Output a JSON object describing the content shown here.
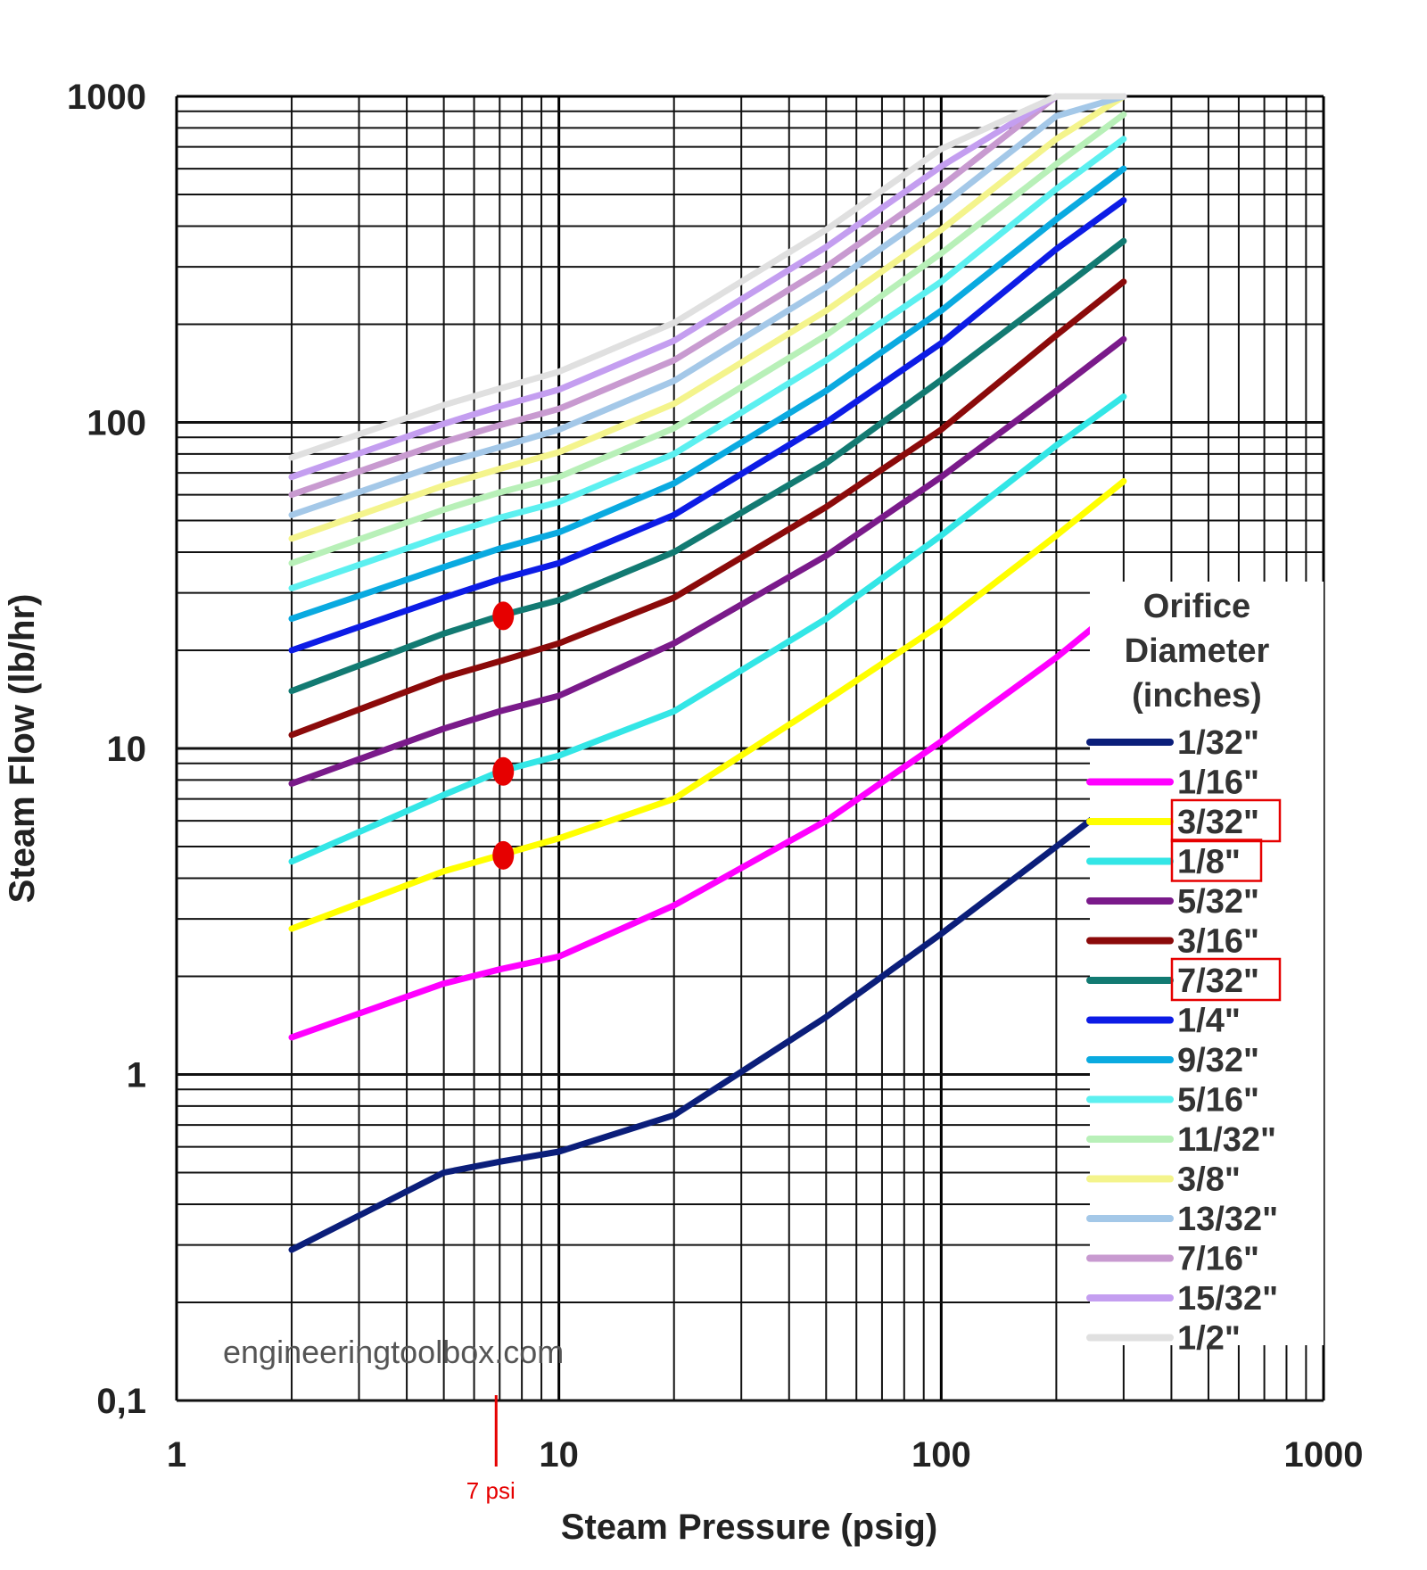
{
  "chart_data": {
    "type": "line",
    "title": "",
    "xlabel": "Steam Pressure (psig)",
    "ylabel": "Steam Flow (lb/hr)",
    "x_scale": "log",
    "y_scale": "log",
    "xlim": [
      1,
      1000
    ],
    "ylim": [
      0.1,
      1000
    ],
    "x_ticks": [
      1,
      10,
      100,
      1000
    ],
    "x_tick_labels": [
      "1",
      "10",
      "100",
      "1000"
    ],
    "y_ticks": [
      0.1,
      1,
      10,
      100,
      1000
    ],
    "y_tick_labels": [
      "0,1",
      "1",
      "10",
      "100",
      "1000"
    ],
    "grid": true,
    "legend": {
      "title_lines": [
        "Orifice",
        "Diameter",
        "(inches)"
      ],
      "placement": "right"
    },
    "x": [
      2,
      5,
      7,
      10,
      20,
      50,
      100,
      200,
      300
    ],
    "series": [
      {
        "name": "1/32\"",
        "color": "#0b1e7a",
        "values": [
          0.29,
          0.5,
          0.54,
          0.58,
          0.75,
          1.5,
          2.7,
          5.0,
          7.2
        ]
      },
      {
        "name": "1/16\"",
        "color": "#ff00ff",
        "values": [
          1.3,
          1.9,
          2.1,
          2.3,
          3.3,
          6.0,
          10.5,
          19,
          28
        ]
      },
      {
        "name": "3/32\"",
        "color": "#ffff00",
        "values": [
          2.8,
          4.2,
          4.7,
          5.3,
          7.0,
          14,
          24,
          45,
          66
        ]
      },
      {
        "name": "1/8\"",
        "color": "#33e6e6",
        "values": [
          4.5,
          7.2,
          8.5,
          9.5,
          13,
          25,
          45,
          85,
          120
        ]
      },
      {
        "name": "5/32\"",
        "color": "#7a1a8a",
        "values": [
          7.8,
          11.5,
          13,
          14.5,
          21,
          39,
          68,
          125,
          180
        ]
      },
      {
        "name": "3/16\"",
        "color": "#8b0a0a",
        "values": [
          11,
          16.5,
          18.5,
          21,
          29,
          55,
          95,
          185,
          270
        ]
      },
      {
        "name": "7/32\"",
        "color": "#127a72",
        "values": [
          15,
          22.5,
          25.5,
          28.5,
          40,
          75,
          135,
          250,
          360
        ]
      },
      {
        "name": "1/4\"",
        "color": "#0d1ce6",
        "values": [
          20,
          29,
          33,
          37,
          52,
          100,
          175,
          340,
          480
        ]
      },
      {
        "name": "9/32\"",
        "color": "#0aaae0",
        "values": [
          25,
          36,
          41,
          46,
          65,
          125,
          220,
          420,
          600
        ]
      },
      {
        "name": "5/16\"",
        "color": "#5cf0f0",
        "values": [
          31,
          45,
          51,
          57,
          80,
          155,
          270,
          520,
          740
        ]
      },
      {
        "name": "11/32\"",
        "color": "#b8f0b8",
        "values": [
          37,
          54,
          61,
          68,
          96,
          185,
          330,
          620,
          880
        ]
      },
      {
        "name": "3/8\"",
        "color": "#f4f48c",
        "values": [
          44,
          64,
          72,
          81,
          114,
          220,
          390,
          740,
          1000
        ]
      },
      {
        "name": "13/32\"",
        "color": "#a4c8e8",
        "values": [
          52,
          75,
          84,
          95,
          134,
          260,
          460,
          870,
          1000
        ]
      },
      {
        "name": "7/16\"",
        "color": "#c89ad0",
        "values": [
          60,
          87,
          98,
          110,
          155,
          300,
          530,
          1000,
          1000
        ]
      },
      {
        "name": "15/32\"",
        "color": "#c49ef0",
        "values": [
          68,
          99,
          112,
          126,
          178,
          345,
          610,
          1000,
          1000
        ]
      },
      {
        "name": "1/2\"",
        "color": "#e0e0e0",
        "values": [
          78,
          113,
          127,
          143,
          202,
          390,
          690,
          1000,
          1000
        ]
      }
    ],
    "highlighted_legend_entries": [
      "3/32\"",
      "1/8\"",
      "7/32\""
    ],
    "highlight_color": "#e60000",
    "markers": [
      {
        "x": 7,
        "y": 25.5,
        "series": "7/32\""
      },
      {
        "x": 7,
        "y": 8.5,
        "series": "1/8\""
      },
      {
        "x": 7,
        "y": 4.7,
        "series": "3/32\""
      }
    ],
    "reference_line": {
      "x": 7,
      "label": "7 psi"
    },
    "watermark": "engineeringtoolbox.com"
  }
}
